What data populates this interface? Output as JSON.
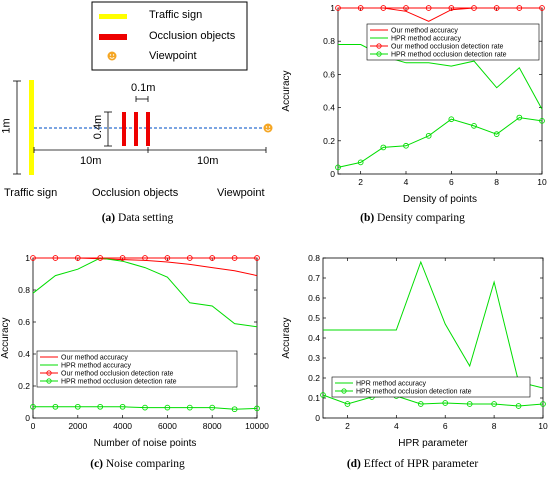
{
  "diagram": {
    "legend": [
      {
        "label": "Traffic sign",
        "color": "#ffff00",
        "icon": "yellow-bar"
      },
      {
        "label": "Occlusion objects",
        "color": "#ee0000",
        "icon": "red-bar"
      },
      {
        "label": "Viewpoint",
        "color": "#f5a623",
        "icon": "smiley-icon"
      }
    ],
    "dims": {
      "height": "1m",
      "gap": "0.1m",
      "obj_height": "0.4m",
      "dist_left": "10m",
      "dist_right": "10m"
    },
    "bottom_labels": {
      "sign": "Traffic sign",
      "objects": "Occlusion objects",
      "viewpoint": "Viewpoint"
    },
    "caption": {
      "tag": "(a)",
      "text": "Data setting"
    }
  },
  "captions": {
    "b": {
      "tag": "(b)",
      "text": "Density comparing"
    },
    "c": {
      "tag": "(c)",
      "text": "Noise comparing"
    },
    "d": {
      "tag": "(d)",
      "text": "Effect of HPR parameter"
    }
  },
  "chart_data": [
    {
      "id": "b",
      "type": "line",
      "xlabel": "Density of points",
      "ylabel": "Accuracy",
      "xlim": [
        1,
        10
      ],
      "ylim": [
        0,
        1
      ],
      "xticks": [
        2,
        4,
        6,
        8,
        10
      ],
      "yticks": [
        0,
        0.2,
        0.4,
        0.6,
        0.8,
        1
      ],
      "legend_position": "top-right",
      "series": [
        {
          "name": "Our method accuracy",
          "color": "#ff0000",
          "marker": false,
          "x": [
            1,
            2,
            3,
            4,
            5,
            6,
            7,
            8,
            9,
            10
          ],
          "y": [
            1,
            1,
            1,
            0.98,
            0.92,
            0.99,
            1,
            1,
            1,
            1
          ]
        },
        {
          "name": "HPR method accuracy",
          "color": "#00dd00",
          "marker": false,
          "x": [
            1,
            2,
            3,
            4,
            5,
            6,
            7,
            8,
            9,
            10
          ],
          "y": [
            0.78,
            0.78,
            0.71,
            0.67,
            0.67,
            0.65,
            0.68,
            0.52,
            0.64,
            0.39
          ]
        },
        {
          "name": "Our method occlusion detection rate",
          "color": "#ff0000",
          "marker": true,
          "x": [
            1,
            2,
            3,
            4,
            5,
            6,
            7,
            8,
            9,
            10
          ],
          "y": [
            1,
            1,
            1,
            1,
            1,
            1,
            1,
            1,
            1,
            1
          ]
        },
        {
          "name": "HPR method occlusion detection rate",
          "color": "#00dd00",
          "marker": true,
          "x": [
            1,
            2,
            3,
            4,
            5,
            6,
            7,
            8,
            9,
            10
          ],
          "y": [
            0.04,
            0.07,
            0.16,
            0.17,
            0.23,
            0.33,
            0.29,
            0.24,
            0.34,
            0.32
          ]
        }
      ]
    },
    {
      "id": "c",
      "type": "line",
      "xlabel": "Number of noise points",
      "ylabel": "Accuracy",
      "xlim": [
        0,
        10000
      ],
      "ylim": [
        0,
        1
      ],
      "xticks": [
        0,
        2000,
        4000,
        6000,
        8000,
        10000
      ],
      "yticks": [
        0,
        0.2,
        0.4,
        0.6,
        0.8,
        1
      ],
      "legend_position": "center-left",
      "series": [
        {
          "name": "Our method accuracy",
          "color": "#ff0000",
          "marker": false,
          "x": [
            0,
            1000,
            2000,
            3000,
            4000,
            5000,
            6000,
            7000,
            8000,
            9000,
            10000
          ],
          "y": [
            1,
            1,
            1,
            0.995,
            0.99,
            0.985,
            0.975,
            0.96,
            0.94,
            0.92,
            0.89
          ]
        },
        {
          "name": "HPR method accuracy",
          "color": "#00dd00",
          "marker": false,
          "x": [
            0,
            1000,
            2000,
            3000,
            4000,
            5000,
            6000,
            7000,
            8000,
            9000,
            10000
          ],
          "y": [
            0.78,
            0.89,
            0.93,
            1,
            0.98,
            0.94,
            0.88,
            0.72,
            0.7,
            0.59,
            0.57
          ]
        },
        {
          "name": "Our method occlusion detection rate",
          "color": "#ff0000",
          "marker": true,
          "x": [
            0,
            1000,
            2000,
            3000,
            4000,
            5000,
            6000,
            7000,
            8000,
            9000,
            10000
          ],
          "y": [
            1,
            1,
            1,
            1,
            1,
            1,
            1,
            1,
            1,
            1,
            1
          ]
        },
        {
          "name": "HPR method occlusion detection rate",
          "color": "#00dd00",
          "marker": true,
          "x": [
            0,
            1000,
            2000,
            3000,
            4000,
            5000,
            6000,
            7000,
            8000,
            9000,
            10000
          ],
          "y": [
            0.07,
            0.07,
            0.07,
            0.07,
            0.07,
            0.065,
            0.065,
            0.065,
            0.065,
            0.055,
            0.06
          ]
        }
      ]
    },
    {
      "id": "d",
      "type": "line",
      "xlabel": "HPR parameter",
      "ylabel": "Accuracy",
      "xlim": [
        1,
        10
      ],
      "ylim": [
        0,
        0.8
      ],
      "xticks": [
        2,
        4,
        6,
        8,
        10
      ],
      "yticks": [
        0,
        0.1,
        0.2,
        0.3,
        0.4,
        0.5,
        0.6,
        0.7,
        0.8
      ],
      "legend_position": "bottom-right",
      "series": [
        {
          "name": "HPR method accuracy",
          "color": "#00dd00",
          "marker": false,
          "x": [
            1,
            2,
            3,
            4,
            5,
            6,
            7,
            8,
            9,
            10
          ],
          "y": [
            0.44,
            0.44,
            0.44,
            0.44,
            0.78,
            0.47,
            0.26,
            0.68,
            0.18,
            0.15
          ]
        },
        {
          "name": "HPR method occlusion detection rate",
          "color": "#00dd00",
          "marker": true,
          "x": [
            1,
            2,
            3,
            4,
            5,
            6,
            7,
            8,
            9,
            10
          ],
          "y": [
            0.115,
            0.07,
            0.105,
            0.11,
            0.07,
            0.075,
            0.07,
            0.07,
            0.06,
            0.07
          ]
        }
      ]
    }
  ]
}
